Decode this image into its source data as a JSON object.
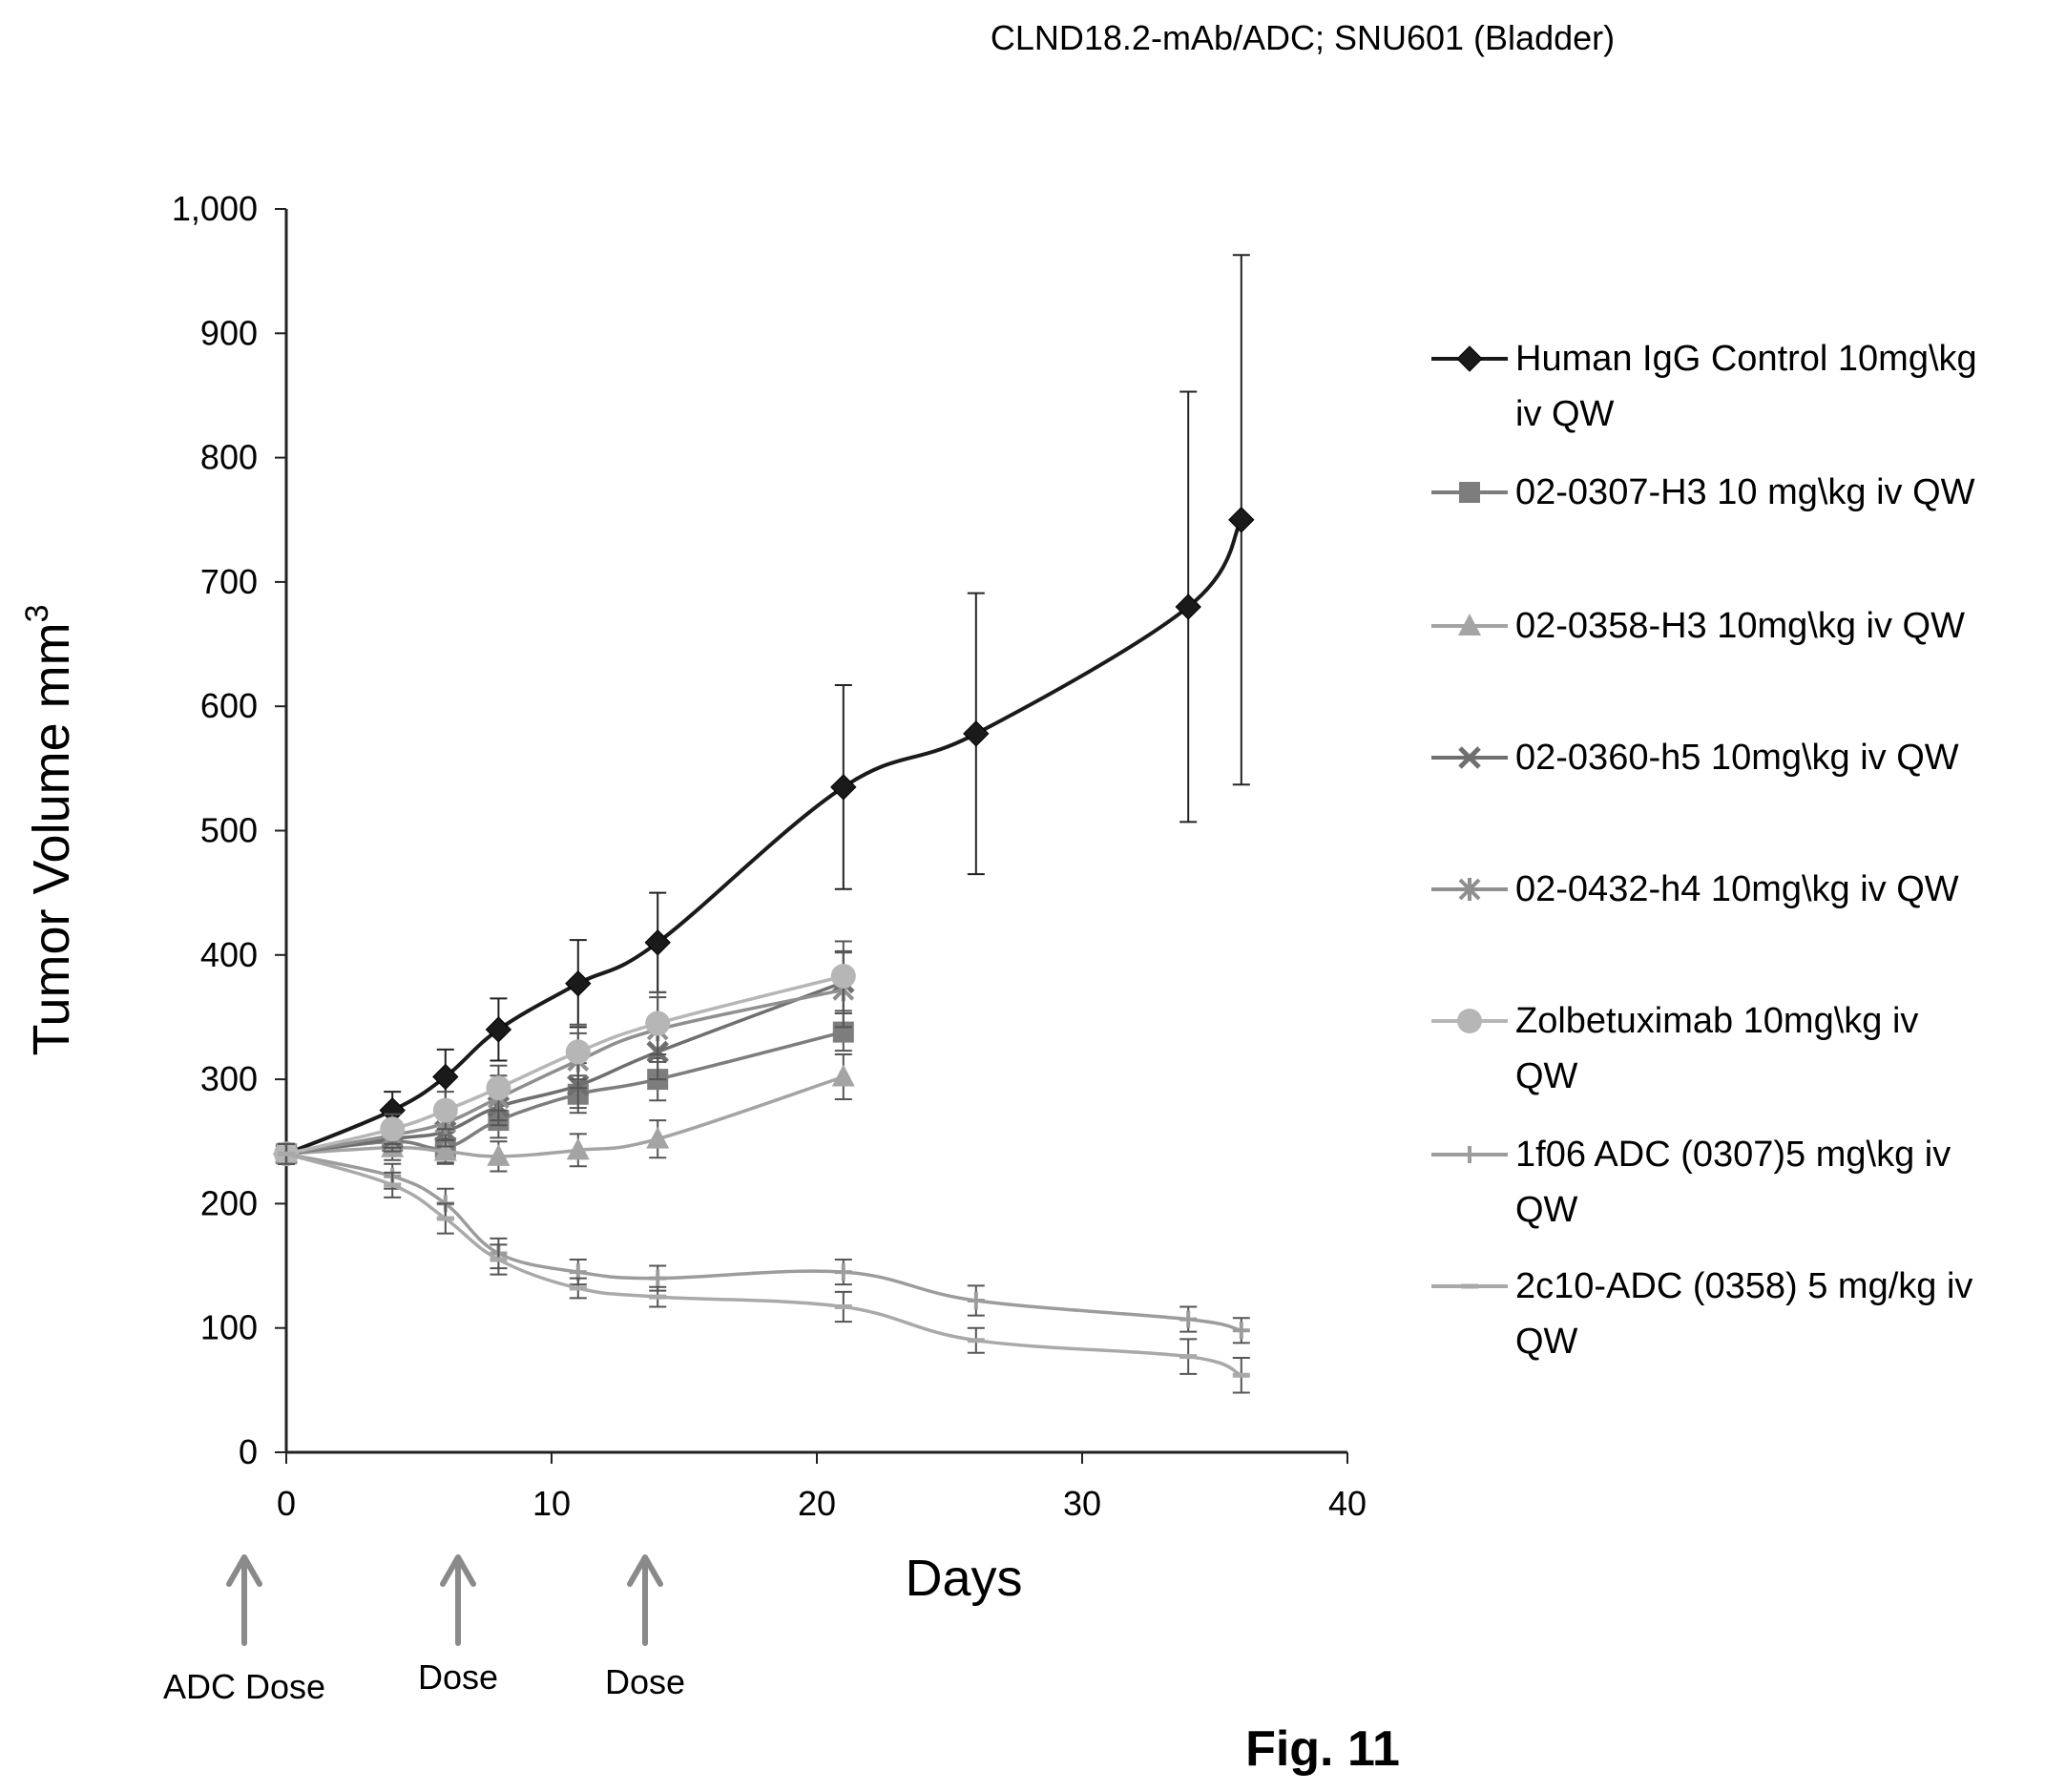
{
  "figure_label": "Fig. 11",
  "chart_data": {
    "type": "line",
    "title": "CLND18.2-mAb/ADC; SNU601 (Bladder)",
    "xlabel": "Days",
    "ylabel": "Tumor Volume mm",
    "ylabel_superscript": "3",
    "xlim": [
      0,
      40
    ],
    "ylim": [
      0,
      1000
    ],
    "x_ticks": [
      "0",
      "10",
      "20",
      "30",
      "40"
    ],
    "y_ticks": [
      "0",
      "100",
      "200",
      "300",
      "400",
      "500",
      "600",
      "700",
      "800",
      "900",
      "1,000"
    ],
    "grid": false,
    "legend_position": "right",
    "series": [
      {
        "name_lines": [
          "Human IgG Control 10mg\\kg",
          "iv  QW"
        ],
        "marker": "diamond",
        "color": "#1a1a1a",
        "x": [
          0,
          4,
          6,
          8,
          11,
          14,
          21,
          26,
          34,
          36
        ],
        "y": [
          240,
          275,
          302,
          340,
          377,
          410,
          535,
          578,
          680,
          750
        ],
        "err": [
          8,
          15,
          22,
          25,
          35,
          40,
          82,
          113,
          173,
          213
        ]
      },
      {
        "name_lines": [
          "02-0307-H3 10 mg\\kg iv   QW"
        ],
        "marker": "square",
        "color": "#7d7d7d",
        "x": [
          0,
          4,
          6,
          8,
          11,
          14,
          21
        ],
        "y": [
          240,
          250,
          245,
          267,
          288,
          300,
          338
        ],
        "err": [
          8,
          10,
          12,
          14,
          15,
          17,
          15
        ]
      },
      {
        "name_lines": [
          "02-0358-H3 10mg\\kg iv   QW"
        ],
        "marker": "triangle",
        "color": "#a4a4a4",
        "x": [
          0,
          4,
          6,
          8,
          11,
          14,
          21
        ],
        "y": [
          240,
          245,
          242,
          238,
          243,
          252,
          302
        ],
        "err": [
          8,
          10,
          10,
          12,
          13,
          15,
          18
        ]
      },
      {
        "name_lines": [
          "02-0360-h5 10mg\\kg iv   QW"
        ],
        "marker": "x",
        "color": "#6f6f6f",
        "x": [
          0,
          4,
          6,
          8,
          11,
          14,
          21
        ],
        "y": [
          240,
          252,
          258,
          278,
          295,
          322,
          378
        ],
        "err": [
          8,
          10,
          12,
          15,
          18,
          22,
          25
        ]
      },
      {
        "name_lines": [
          "02-0432-h4 10mg\\kg  iv  QW"
        ],
        "marker": "star",
        "color": "#8f8f8f",
        "x": [
          0,
          4,
          6,
          8,
          11,
          14,
          21
        ],
        "y": [
          240,
          255,
          265,
          285,
          315,
          340,
          372
        ],
        "err": [
          8,
          10,
          14,
          18,
          22,
          26,
          30
        ]
      },
      {
        "name_lines": [
          "Zolbetuximab 10mg\\kg iv",
          "QW"
        ],
        "marker": "circle",
        "color": "#b6b6b6",
        "x": [
          0,
          4,
          6,
          8,
          11,
          14,
          21
        ],
        "y": [
          240,
          260,
          275,
          293,
          322,
          345,
          383
        ],
        "err": [
          8,
          12,
          15,
          18,
          22,
          25,
          28
        ]
      },
      {
        "name_lines": [
          "1f06 ADC (0307)5 mg\\kg  iv",
          "QW"
        ],
        "marker": "plus",
        "color": "#9c9c9c",
        "x": [
          0,
          4,
          6,
          8,
          11,
          14,
          21,
          26,
          34,
          36
        ],
        "y": [
          240,
          222,
          200,
          160,
          145,
          140,
          145,
          122,
          107,
          98
        ],
        "err": [
          8,
          10,
          12,
          12,
          10,
          10,
          10,
          12,
          10,
          10
        ]
      },
      {
        "name_lines": [
          "2c10-ADC (0358) 5 mg/kg iv",
          "QW"
        ],
        "marker": "dash",
        "color": "#a9a9a9",
        "x": [
          0,
          4,
          6,
          8,
          11,
          14,
          21,
          26,
          34,
          36
        ],
        "y": [
          240,
          215,
          188,
          155,
          132,
          125,
          117,
          90,
          77,
          62
        ],
        "err": [
          8,
          10,
          12,
          12,
          8,
          8,
          12,
          10,
          14,
          14
        ]
      }
    ],
    "dose_annotations": [
      {
        "day": 0,
        "label": "ADC Dose"
      },
      {
        "day": 7,
        "label": "Dose"
      },
      {
        "day": 14,
        "label": "Dose"
      }
    ]
  }
}
